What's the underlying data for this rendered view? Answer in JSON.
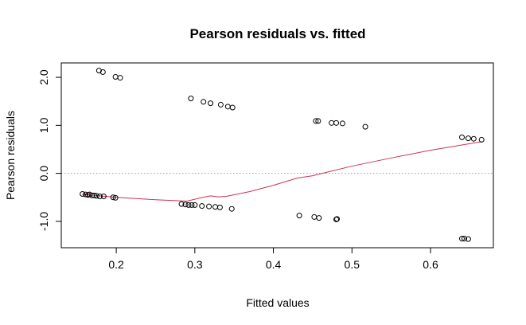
{
  "chart_data": {
    "type": "scatter",
    "title": "Pearson residuals vs. fitted",
    "xlabel": "Fitted values",
    "ylabel": "Pearson residuals",
    "xlim": [
      0.13,
      0.68
    ],
    "ylim": [
      -1.55,
      2.3
    ],
    "x_ticks": [
      0.2,
      0.3,
      0.4,
      0.5,
      0.6
    ],
    "x_tick_labels": [
      "0.2",
      "0.3",
      "0.4",
      "0.5",
      "0.6"
    ],
    "y_ticks": [
      -1.0,
      0.0,
      1.0,
      2.0
    ],
    "y_tick_labels": [
      "-1.0",
      "0.0",
      "1.0",
      "2.0"
    ],
    "reference_line": {
      "y": 0.0,
      "style": "dotted",
      "color": "#a0a0a0"
    },
    "grid": false,
    "legend": "none",
    "series": [
      {
        "kind": "points",
        "marker": "open-circle",
        "color": "#000000",
        "points": [
          [
            0.157,
            -0.43
          ],
          [
            0.161,
            -0.44
          ],
          [
            0.164,
            -0.45
          ],
          [
            0.166,
            -0.44
          ],
          [
            0.169,
            -0.46
          ],
          [
            0.172,
            -0.46
          ],
          [
            0.175,
            -0.47
          ],
          [
            0.179,
            -0.48
          ],
          [
            0.184,
            -0.48
          ],
          [
            0.196,
            -0.5
          ],
          [
            0.199,
            -0.51
          ],
          [
            0.178,
            2.14
          ],
          [
            0.183,
            2.11
          ],
          [
            0.199,
            2.01
          ],
          [
            0.205,
            1.99
          ],
          [
            0.283,
            -0.64
          ],
          [
            0.288,
            -0.65
          ],
          [
            0.292,
            -0.66
          ],
          [
            0.296,
            -0.66
          ],
          [
            0.3,
            -0.66
          ],
          [
            0.309,
            -0.68
          ],
          [
            0.318,
            -0.69
          ],
          [
            0.326,
            -0.7
          ],
          [
            0.332,
            -0.71
          ],
          [
            0.347,
            -0.74
          ],
          [
            0.295,
            1.56
          ],
          [
            0.311,
            1.49
          ],
          [
            0.32,
            1.46
          ],
          [
            0.333,
            1.43
          ],
          [
            0.342,
            1.39
          ],
          [
            0.348,
            1.37
          ],
          [
            0.433,
            -0.88
          ],
          [
            0.452,
            -0.91
          ],
          [
            0.458,
            -0.93
          ],
          [
            0.48,
            -0.96
          ],
          [
            0.481,
            -0.95
          ],
          [
            0.454,
            1.09
          ],
          [
            0.457,
            1.09
          ],
          [
            0.474,
            1.05
          ],
          [
            0.48,
            1.05
          ],
          [
            0.488,
            1.04
          ],
          [
            0.517,
            0.97
          ],
          [
            0.64,
            0.75
          ],
          [
            0.648,
            0.73
          ],
          [
            0.655,
            0.72
          ],
          [
            0.665,
            0.7
          ],
          [
            0.64,
            -1.36
          ],
          [
            0.643,
            -1.36
          ],
          [
            0.648,
            -1.37
          ]
        ]
      },
      {
        "kind": "smooth-line",
        "color": "#cc3355",
        "points": [
          [
            0.157,
            -0.44
          ],
          [
            0.18,
            -0.47
          ],
          [
            0.2,
            -0.5
          ],
          [
            0.25,
            -0.55
          ],
          [
            0.29,
            -0.58
          ],
          [
            0.31,
            -0.5
          ],
          [
            0.32,
            -0.47
          ],
          [
            0.33,
            -0.49
          ],
          [
            0.34,
            -0.48
          ],
          [
            0.37,
            -0.38
          ],
          [
            0.4,
            -0.25
          ],
          [
            0.43,
            -0.1
          ],
          [
            0.45,
            -0.05
          ],
          [
            0.47,
            0.03
          ],
          [
            0.5,
            0.15
          ],
          [
            0.55,
            0.32
          ],
          [
            0.6,
            0.48
          ],
          [
            0.64,
            0.59
          ],
          [
            0.665,
            0.66
          ]
        ]
      }
    ]
  }
}
